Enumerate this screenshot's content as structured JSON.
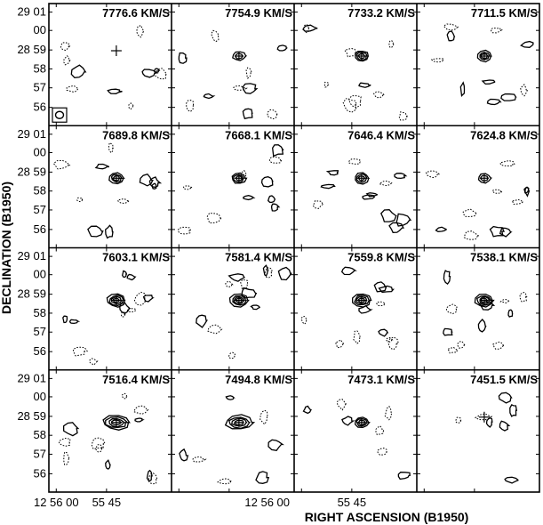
{
  "axes": {
    "xlabel": "RIGHT ASCENSION (B1950)",
    "ylabel": "DECLINATION (B1950)",
    "x_tick_labels": [
      "12 56 00",
      "55 45",
      "12 56 00",
      "55 45"
    ],
    "y_tick_labels_rows": [
      [
        "29 01",
        "00",
        "28 59",
        "58",
        "57",
        "56"
      ],
      [
        "29 01",
        "00",
        "28 59",
        "58",
        "57",
        "56"
      ],
      [
        "29 01",
        "00",
        "28 59",
        "58",
        "57",
        "56"
      ],
      [
        "29 01",
        "00",
        "28 59",
        "58",
        "57",
        "56"
      ]
    ]
  },
  "panels": [
    {
      "velocity": "7776.6 KM/S",
      "source": "none",
      "cross": true,
      "beam": true
    },
    {
      "velocity": "7754.9 KM/S",
      "source": "weak",
      "cross": false,
      "beam": false
    },
    {
      "velocity": "7733.2 KM/S",
      "source": "medium",
      "cross": false,
      "beam": false
    },
    {
      "velocity": "7711.5 KM/S",
      "source": "medium",
      "cross": false,
      "beam": false
    },
    {
      "velocity": "7689.8 KM/S",
      "source": "medium",
      "cross": false,
      "beam": false
    },
    {
      "velocity": "7668.1 KM/S",
      "source": "medium",
      "cross": false,
      "beam": false
    },
    {
      "velocity": "7646.4 KM/S",
      "source": "medium",
      "cross": false,
      "beam": false
    },
    {
      "velocity": "7624.8 KM/S",
      "source": "weak",
      "cross": false,
      "beam": false
    },
    {
      "velocity": "7603.1 KM/S",
      "source": "strong",
      "cross": false,
      "beam": false
    },
    {
      "velocity": "7581.4 KM/S",
      "source": "strong",
      "cross": false,
      "beam": false
    },
    {
      "velocity": "7559.8 KM/S",
      "source": "strong",
      "cross": false,
      "beam": false
    },
    {
      "velocity": "7538.1 KM/S",
      "source": "strong",
      "cross": false,
      "beam": false
    },
    {
      "velocity": "7516.4 KM/S",
      "source": "extended",
      "cross": false,
      "beam": false
    },
    {
      "velocity": "7494.8 KM/S",
      "source": "extended",
      "cross": false,
      "beam": false
    },
    {
      "velocity": "7473.1 KM/S",
      "source": "medium",
      "cross": false,
      "beam": false
    },
    {
      "velocity": "7451.5 KM/S",
      "source": "none",
      "cross": true,
      "beam": false
    }
  ]
}
